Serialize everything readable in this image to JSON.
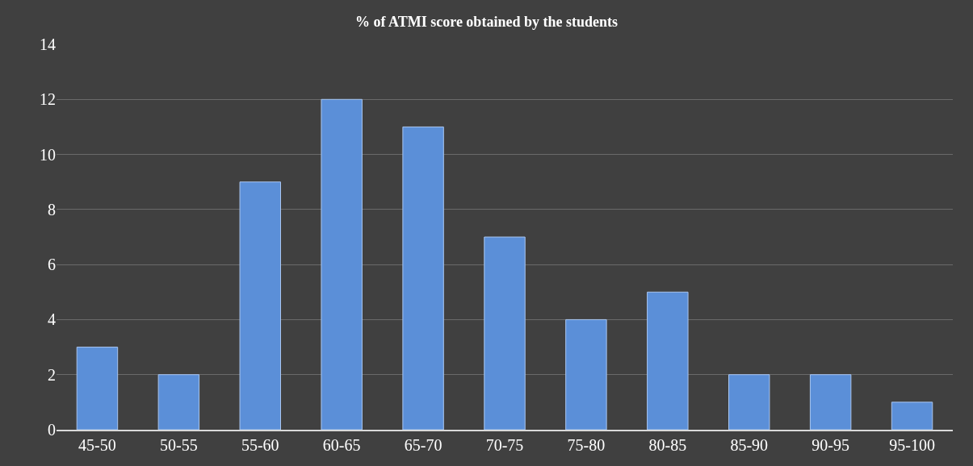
{
  "chart_data": {
    "type": "bar",
    "title": "% of ATMI score obtained by the students",
    "categories": [
      "45-50",
      "50-55",
      "55-60",
      "60-65",
      "65-70",
      "70-75",
      "75-80",
      "80-85",
      "85-90",
      "90-95",
      "95-100"
    ],
    "values": [
      3,
      2,
      9,
      12,
      11,
      7,
      4,
      5,
      2,
      2,
      1
    ],
    "color": "#5b8fd8",
    "ylim": [
      0,
      14
    ],
    "yticks": [
      0,
      2,
      4,
      6,
      8,
      10,
      12,
      14
    ],
    "grid": "y"
  }
}
